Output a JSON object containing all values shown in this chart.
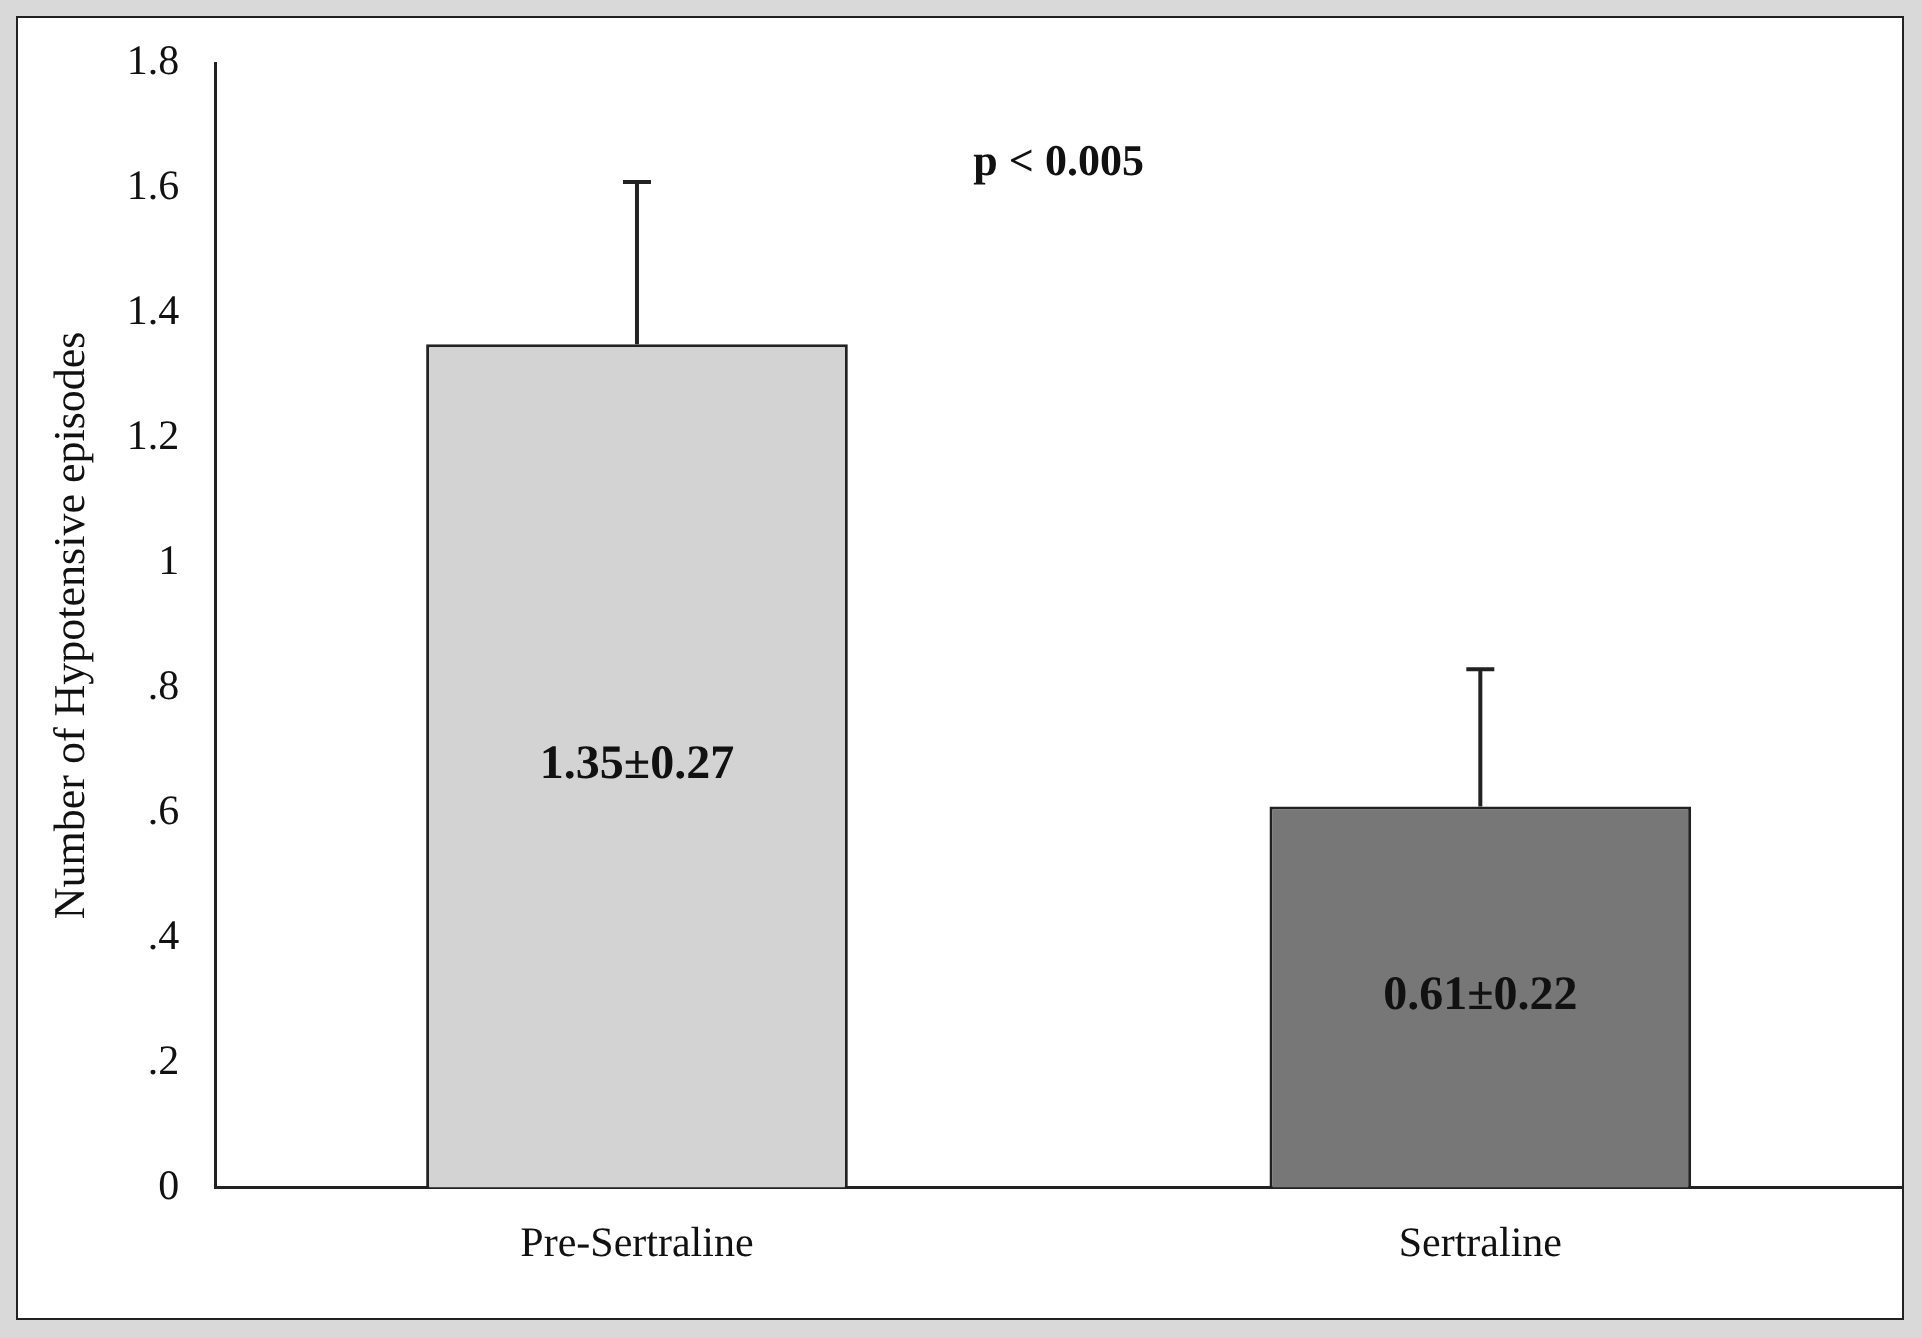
{
  "chart_data": {
    "type": "bar",
    "categories": [
      "Pre-Sertraline",
      "Sertraline"
    ],
    "values": [
      1.35,
      0.61
    ],
    "colors": [
      "#d3d3d3",
      "#777777"
    ],
    "errors": [
      [
        1.35,
        1.61
      ],
      [
        0.61,
        0.83
      ]
    ],
    "value_labels": [
      "1.35±0.27",
      "0.61±0.22"
    ],
    "ylabel": "Number of Hypotensive episodes",
    "ylim": [
      0,
      1.8
    ],
    "yticks": [
      0,
      {
        "value": 0.2,
        "label": ".2"
      },
      {
        "value": 0.4,
        "label": ".4"
      },
      {
        "value": 0.6,
        "label": ".6"
      },
      {
        "value": 0.8,
        "label": ".8"
      },
      1,
      1.2,
      1.4,
      1.6,
      1.8
    ],
    "annotations": [
      "p < 0.005"
    ],
    "grid": false,
    "legend": false
  }
}
